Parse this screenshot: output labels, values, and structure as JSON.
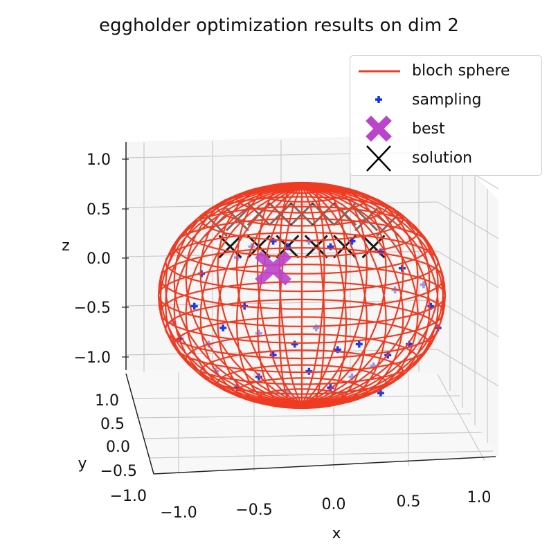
{
  "title": "eggholder optimization results on dim 2",
  "chart_data": {
    "type": "scatter",
    "projection": "3d",
    "title": "eggholder optimization results on dim 2",
    "xlabel": "x",
    "ylabel": "y",
    "zlabel": "z",
    "xlim": [
      -1.15,
      1.15
    ],
    "ylim": [
      -1.0,
      1.15
    ],
    "zlim": [
      -1.1,
      1.1
    ],
    "x_ticks": [
      "−1.0",
      "−0.5",
      "0.0",
      "0.5",
      "1.0"
    ],
    "y_ticks": [
      "−1.0",
      "−0.5",
      "0.0",
      "0.5",
      "1.0"
    ],
    "z_ticks": [
      "−1.0",
      "−0.5",
      "0.0",
      "0.5",
      "1.0"
    ],
    "grid": true,
    "legend_position": "top-right",
    "legend": [
      "bloch sphere",
      "sampling",
      "best",
      "solution"
    ],
    "series": [
      {
        "name": "bloch sphere",
        "kind": "wireframe",
        "shape": "unit sphere",
        "radius": 1.0,
        "color": "#ee3b22"
      },
      {
        "name": "sampling",
        "kind": "scatter",
        "marker": "plus",
        "color": "#1030ee",
        "points_xz": [
          [
            -0.35,
            0.45
          ],
          [
            -0.2,
            0.5
          ],
          [
            -0.1,
            0.45
          ],
          [
            0.05,
            0.5
          ],
          [
            0.2,
            0.45
          ],
          [
            0.35,
            0.5
          ],
          [
            -0.45,
            0.35
          ],
          [
            0.55,
            0.4
          ],
          [
            0.7,
            0.25
          ],
          [
            0.85,
            0.1
          ],
          [
            0.9,
            -0.1
          ],
          [
            0.95,
            -0.3
          ],
          [
            -0.9,
            -0.25
          ],
          [
            -0.85,
            -0.4
          ],
          [
            -0.75,
            -0.1
          ],
          [
            -0.65,
            -0.45
          ],
          [
            -0.55,
            -0.3
          ],
          [
            -0.4,
            -0.1
          ],
          [
            -0.3,
            -0.35
          ],
          [
            -0.2,
            -0.55
          ],
          [
            -0.05,
            -0.45
          ],
          [
            0.1,
            -0.3
          ],
          [
            0.25,
            -0.5
          ],
          [
            0.4,
            -0.45
          ],
          [
            0.5,
            -0.65
          ],
          [
            0.6,
            -0.55
          ],
          [
            0.75,
            -0.45
          ],
          [
            -0.6,
            -0.7
          ],
          [
            -0.45,
            -0.85
          ],
          [
            -0.3,
            -0.75
          ],
          [
            -0.1,
            -0.9
          ],
          [
            0.05,
            -0.7
          ],
          [
            0.2,
            -0.85
          ],
          [
            0.35,
            -0.75
          ],
          [
            0.55,
            -0.9
          ],
          [
            -0.7,
            0.2
          ],
          [
            0.65,
            0.05
          ]
        ]
      },
      {
        "name": "best",
        "kind": "scatter",
        "marker": "X",
        "color": "#bb44cc",
        "x": -0.2,
        "z": 0.25
      },
      {
        "name": "solution",
        "kind": "scatter",
        "marker": "x",
        "color": "#000000",
        "points_xz": [
          [
            -0.6,
            0.65
          ],
          [
            -0.45,
            0.7
          ],
          [
            -0.3,
            0.75
          ],
          [
            -0.15,
            0.75
          ],
          [
            0.0,
            0.75
          ],
          [
            0.15,
            0.75
          ],
          [
            0.3,
            0.75
          ],
          [
            0.45,
            0.7
          ],
          [
            0.6,
            0.65
          ],
          [
            -0.5,
            0.45
          ],
          [
            -0.3,
            0.45
          ],
          [
            -0.1,
            0.45
          ],
          [
            0.1,
            0.45
          ],
          [
            0.3,
            0.45
          ],
          [
            0.5,
            0.45
          ]
        ]
      }
    ]
  }
}
